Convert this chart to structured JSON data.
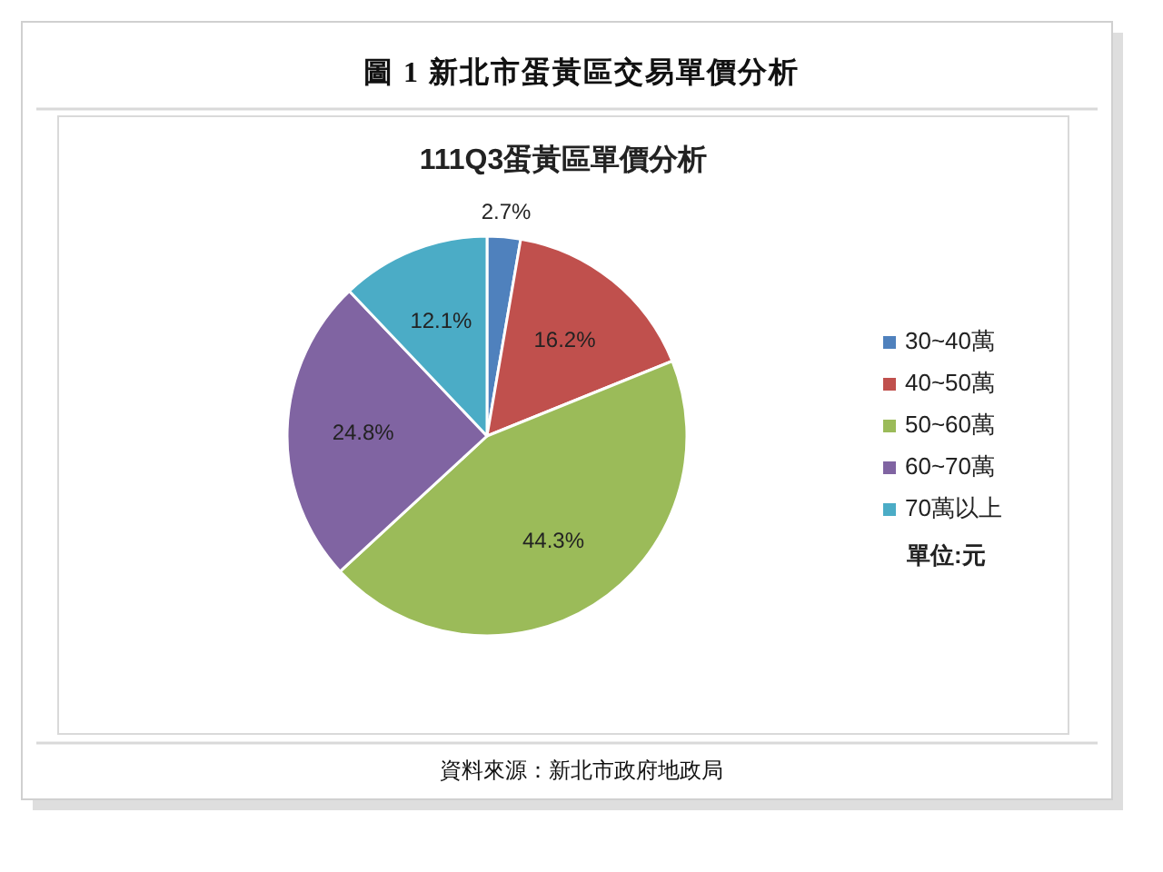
{
  "chart_data": {
    "type": "pie",
    "title": "圖 1 新北市蛋黃區交易單價分析",
    "subtitle": "111Q3蛋黃區單價分析",
    "categories": [
      "30~40萬",
      "40~50萬",
      "50~60萬",
      "60~70萬",
      "70萬以上"
    ],
    "values": [
      2.7,
      16.2,
      44.3,
      24.8,
      12.1
    ],
    "colors": [
      "#4f81bd",
      "#c0504d",
      "#9bbb59",
      "#8064a2",
      "#4bacc6"
    ],
    "value_labels": [
      "2.7%",
      "16.2%",
      "44.3%",
      "24.8%",
      "12.1%"
    ],
    "legend": "right",
    "annotations": [
      "單位:元",
      "資料來源：新北市政府地政局"
    ]
  }
}
